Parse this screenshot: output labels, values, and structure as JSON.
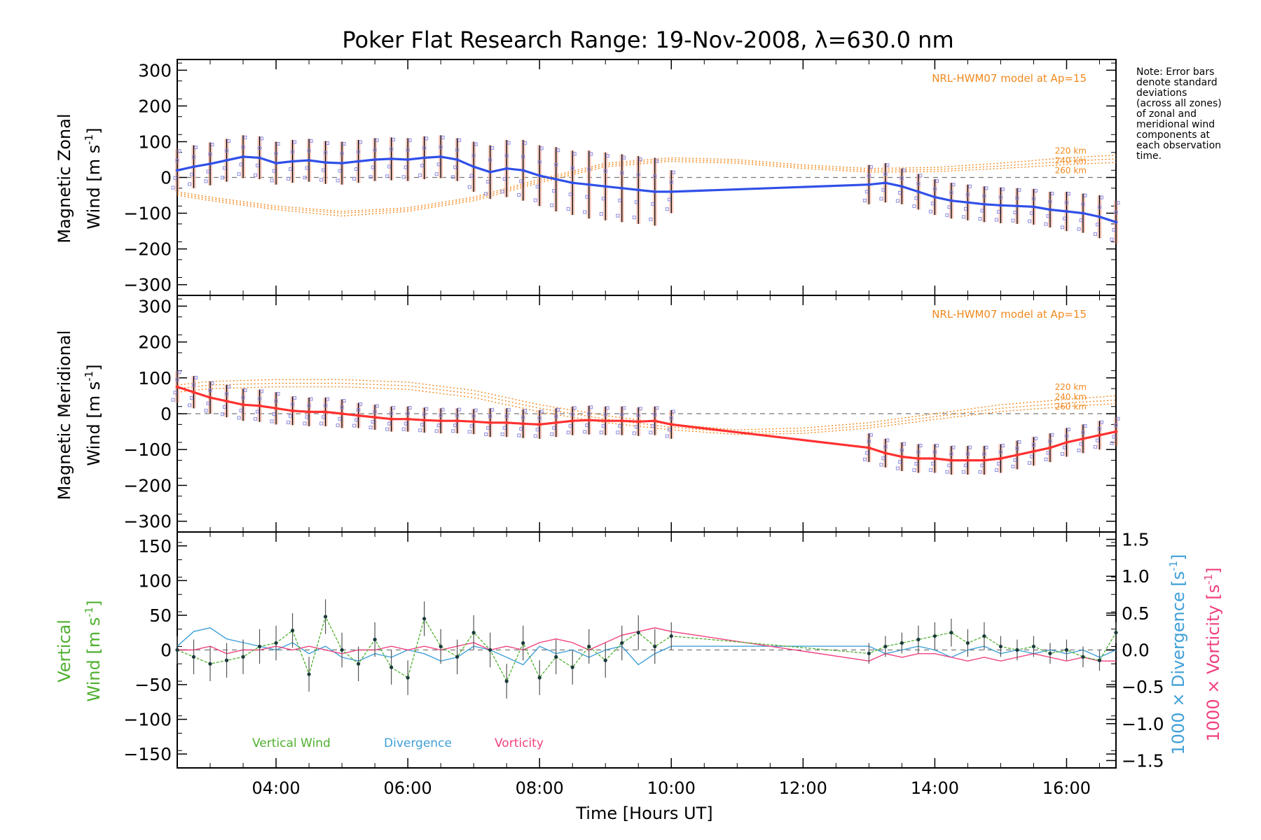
{
  "title": "Poker Flat Research Range: 19-Nov-2008, λ=630.0 nm",
  "note": [
    "Note: Error bars",
    "denote standard",
    "deviations",
    "(across all zones)",
    "of zonal and",
    "meridional wind",
    "components at",
    "each observation",
    "time."
  ],
  "xlabel": "Time [Hours UT]",
  "x_ticks": [
    "04:00",
    "06:00",
    "08:00",
    "10:00",
    "12:00",
    "14:00",
    "16:00"
  ],
  "colors": {
    "zonal": "#3050e8",
    "meridional": "#ff3030",
    "model": "#f08a20",
    "vertical": "#50b030",
    "divergence": "#40a0d8",
    "vorticity": "#f04080",
    "zones": "#8c8ce0",
    "errorbar": "#000000"
  },
  "chart_data": [
    {
      "type": "line",
      "panel": "zonal",
      "ylabel_line1": "Magnetic Zonal",
      "ylabel_line2": "Wind [m s",
      "ylabel_sup": "-1",
      "ylabel_close": "]",
      "xlim": [
        2.5,
        16.75
      ],
      "ylim": [
        -330,
        330
      ],
      "y_ticks": [
        "300",
        "200",
        "100",
        "0",
        "−100",
        "−200",
        "−300"
      ],
      "model_label": "NRL-HWM07 model at Ap=15",
      "model_altitudes": [
        "220 km",
        "240 km",
        "260 km"
      ],
      "series": [
        {
          "x": [
            2.5,
            2.75,
            3.0,
            3.25,
            3.5,
            3.75,
            4.0,
            4.25,
            4.5,
            4.75,
            5.0,
            5.25,
            5.5,
            5.75,
            6.0,
            6.25,
            6.5,
            6.75,
            7.0,
            7.25,
            7.5,
            7.75,
            8.0,
            8.25,
            8.5,
            8.75,
            9.0,
            9.25,
            9.5,
            9.75,
            10.0,
            13.0,
            13.25,
            13.5,
            13.75,
            14.0,
            14.25,
            14.5,
            14.75,
            15.0,
            15.25,
            15.5,
            15.75,
            16.0,
            16.25,
            16.5,
            16.75
          ],
          "y": [
            20,
            30,
            38,
            48,
            58,
            55,
            40,
            45,
            48,
            42,
            40,
            45,
            50,
            52,
            50,
            55,
            58,
            50,
            30,
            15,
            25,
            20,
            5,
            -5,
            -15,
            -20,
            -25,
            -30,
            -35,
            -40,
            -40,
            -20,
            -15,
            -25,
            -40,
            -55,
            -65,
            -70,
            -75,
            -78,
            -80,
            -82,
            -90,
            -95,
            -100,
            -110,
            -125
          ]
        }
      ],
      "model": [
        {
          "x": [
            2.5,
            3.0,
            4.0,
            5.0,
            6.0,
            7.0,
            8.0,
            9.0,
            10.0,
            11.0,
            12.0,
            13.0,
            14.0,
            15.0,
            16.0,
            16.75
          ],
          "y": [
            -40,
            -55,
            -80,
            -95,
            -85,
            -55,
            -5,
            40,
            55,
            50,
            35,
            25,
            28,
            40,
            55,
            62
          ]
        },
        {
          "x": [
            2.5,
            3.0,
            4.0,
            5.0,
            6.0,
            7.0,
            8.0,
            9.0,
            10.0,
            11.0,
            12.0,
            13.0,
            14.0,
            15.0,
            16.0,
            16.75
          ],
          "y": [
            -45,
            -60,
            -85,
            -100,
            -90,
            -60,
            -10,
            35,
            50,
            45,
            30,
            20,
            22,
            32,
            45,
            52
          ]
        },
        {
          "x": [
            2.5,
            3.0,
            4.0,
            5.0,
            6.0,
            7.0,
            8.0,
            9.0,
            10.0,
            11.0,
            12.0,
            13.0,
            14.0,
            15.0,
            16.0,
            16.75
          ],
          "y": [
            -50,
            -65,
            -90,
            -108,
            -95,
            -65,
            -15,
            30,
            45,
            40,
            25,
            15,
            16,
            25,
            36,
            42
          ]
        }
      ],
      "errors": [
        60,
        60,
        60,
        60,
        60,
        60,
        60,
        60,
        60,
        60,
        60,
        60,
        60,
        60,
        60,
        60,
        60,
        60,
        70,
        75,
        80,
        85,
        85,
        90,
        90,
        95,
        95,
        95,
        95,
        95,
        60,
        55,
        55,
        50,
        50,
        50,
        50,
        50,
        50,
        50,
        50,
        50,
        50,
        55,
        55,
        60,
        60
      ]
    },
    {
      "type": "line",
      "panel": "meridional",
      "ylabel_line1": "Magnetic Meridional",
      "ylabel_line2": "Wind [m s",
      "ylabel_sup": "-1",
      "ylabel_close": "]",
      "xlim": [
        2.5,
        16.75
      ],
      "ylim": [
        -330,
        330
      ],
      "y_ticks": [
        "300",
        "200",
        "100",
        "0",
        "−100",
        "−200",
        "−300"
      ],
      "model_label": "NRL-HWM07 model at Ap=15",
      "model_altitudes": [
        "220 km",
        "240 km",
        "260 km"
      ],
      "series": [
        {
          "x": [
            2.5,
            2.75,
            3.0,
            3.25,
            3.5,
            3.75,
            4.0,
            4.25,
            4.5,
            4.75,
            5.0,
            5.25,
            5.5,
            5.75,
            6.0,
            6.25,
            6.5,
            6.75,
            7.0,
            7.25,
            7.5,
            7.75,
            8.0,
            8.25,
            8.5,
            8.75,
            9.0,
            9.25,
            9.5,
            9.75,
            10.0,
            13.0,
            13.25,
            13.5,
            13.75,
            14.0,
            14.25,
            14.5,
            14.75,
            15.0,
            15.25,
            15.5,
            15.75,
            16.0,
            16.25,
            16.5,
            16.75
          ],
          "y": [
            75,
            60,
            45,
            35,
            25,
            22,
            15,
            8,
            5,
            5,
            0,
            -5,
            -10,
            -15,
            -15,
            -18,
            -20,
            -20,
            -22,
            -25,
            -25,
            -28,
            -30,
            -25,
            -20,
            -18,
            -20,
            -20,
            -22,
            -20,
            -30,
            -95,
            -110,
            -120,
            -125,
            -125,
            -130,
            -130,
            -130,
            -125,
            -115,
            -105,
            -95,
            -80,
            -70,
            -60,
            -50
          ]
        }
      ],
      "model": [
        {
          "x": [
            2.5,
            3.0,
            4.0,
            5.0,
            6.0,
            7.0,
            8.0,
            9.0,
            10.0,
            11.0,
            12.0,
            13.0,
            14.0,
            15.0,
            16.0,
            16.75
          ],
          "y": [
            80,
            90,
            95,
            95,
            88,
            65,
            25,
            -5,
            -30,
            -45,
            -40,
            -25,
            0,
            25,
            40,
            50
          ]
        },
        {
          "x": [
            2.5,
            3.0,
            4.0,
            5.0,
            6.0,
            7.0,
            8.0,
            9.0,
            10.0,
            11.0,
            12.0,
            13.0,
            14.0,
            15.0,
            16.0,
            16.75
          ],
          "y": [
            70,
            80,
            85,
            85,
            78,
            55,
            15,
            -15,
            -38,
            -52,
            -48,
            -33,
            -8,
            15,
            30,
            38
          ]
        },
        {
          "x": [
            2.5,
            3.0,
            4.0,
            5.0,
            6.0,
            7.0,
            8.0,
            9.0,
            10.0,
            11.0,
            12.0,
            13.0,
            14.0,
            15.0,
            16.0,
            16.75
          ],
          "y": [
            60,
            70,
            75,
            75,
            68,
            45,
            5,
            -25,
            -45,
            -58,
            -55,
            -40,
            -16,
            6,
            20,
            28
          ]
        }
      ],
      "errors": [
        45,
        45,
        45,
        45,
        45,
        45,
        45,
        40,
        40,
        40,
        40,
        35,
        35,
        35,
        35,
        35,
        35,
        35,
        35,
        40,
        40,
        40,
        40,
        40,
        40,
        40,
        40,
        40,
        40,
        40,
        40,
        40,
        40,
        40,
        40,
        40,
        40,
        40,
        40,
        40,
        40,
        40,
        40,
        40,
        40,
        40,
        40
      ]
    },
    {
      "type": "line",
      "panel": "vertical",
      "ylabel_line1": "Vertical",
      "ylabel_line2": "Wind [m s",
      "ylabel_sup": "-1",
      "ylabel_close": "]",
      "y2label_div": "1000 × Divergence [s",
      "y2label_vor": "1000 × Vorticity [s",
      "y2label_sup": "-1",
      "y2label_close": "]",
      "xlim": [
        2.5,
        16.75
      ],
      "ylim": [
        -170,
        170
      ],
      "y2lim": [
        -1.6,
        1.6
      ],
      "y_ticks": [
        "150",
        "100",
        "50",
        "0",
        "−50",
        "−100",
        "−150"
      ],
      "y2_ticks": [
        "1.5",
        "1.0",
        "0.5",
        "0.0",
        "−0.5",
        "−1.0",
        "−1.5"
      ],
      "legend": [
        "Vertical Wind",
        "Divergence",
        "Vorticity"
      ],
      "series": [
        {
          "name": "Vertical Wind",
          "x": [
            2.5,
            2.75,
            3.0,
            3.25,
            3.5,
            3.75,
            4.0,
            4.25,
            4.5,
            4.75,
            5.0,
            5.25,
            5.5,
            5.75,
            6.0,
            6.25,
            6.5,
            6.75,
            7.0,
            7.25,
            7.5,
            7.75,
            8.0,
            8.25,
            8.5,
            8.75,
            9.0,
            9.25,
            9.5,
            9.75,
            10.0,
            13.0,
            13.25,
            13.5,
            13.75,
            14.0,
            14.25,
            14.5,
            14.75,
            15.0,
            15.25,
            15.5,
            15.75,
            16.0,
            16.25,
            16.5,
            16.75
          ],
          "y": [
            0,
            -10,
            -20,
            -15,
            -10,
            5,
            10,
            28,
            -35,
            48,
            0,
            -20,
            15,
            -25,
            -40,
            45,
            5,
            -10,
            25,
            0,
            -45,
            10,
            -40,
            -10,
            -25,
            5,
            -15,
            10,
            25,
            5,
            20,
            -5,
            5,
            10,
            15,
            20,
            25,
            10,
            20,
            5,
            0,
            5,
            -5,
            0,
            -10,
            -15,
            25
          ]
        },
        {
          "name": "Divergence",
          "x": [
            2.5,
            2.75,
            3.0,
            3.25,
            3.5,
            3.75,
            4.0,
            4.25,
            4.5,
            4.75,
            5.0,
            5.25,
            5.5,
            5.75,
            6.0,
            6.25,
            6.5,
            6.75,
            7.0,
            7.25,
            7.5,
            7.75,
            8.0,
            8.25,
            8.5,
            8.75,
            9.0,
            9.25,
            9.5,
            9.75,
            10.0,
            13.0,
            13.25,
            13.5,
            13.75,
            14.0,
            14.25,
            14.5,
            14.75,
            15.0,
            15.25,
            15.5,
            15.75,
            16.0,
            16.25,
            16.5,
            16.75
          ],
          "y": [
            0.05,
            0.25,
            0.3,
            0.15,
            0.1,
            0.05,
            0.0,
            0.1,
            -0.05,
            0.05,
            -0.1,
            -0.15,
            -0.05,
            -0.1,
            0.0,
            -0.05,
            -0.15,
            -0.1,
            0.05,
            0.0,
            -0.1,
            -0.2,
            0.05,
            -0.05,
            0.0,
            -0.1,
            0.0,
            0.05,
            -0.2,
            -0.05,
            0.05,
            0.05,
            -0.05,
            0.0,
            0.05,
            0.0,
            -0.1,
            0.0,
            0.05,
            -0.05,
            0.0,
            -0.05,
            0.0,
            -0.05,
            0.0,
            -0.1,
            0.0
          ]
        },
        {
          "name": "Vorticity",
          "x": [
            2.5,
            2.75,
            3.0,
            3.25,
            3.5,
            3.75,
            4.0,
            4.25,
            4.5,
            4.75,
            5.0,
            5.25,
            5.5,
            5.75,
            6.0,
            6.25,
            6.5,
            6.75,
            7.0,
            7.25,
            7.5,
            7.75,
            8.0,
            8.25,
            8.5,
            8.75,
            9.0,
            9.25,
            9.5,
            9.75,
            10.0,
            13.0,
            13.25,
            13.5,
            13.75,
            14.0,
            14.25,
            14.5,
            14.75,
            15.0,
            15.25,
            15.5,
            15.75,
            16.0,
            16.25,
            16.5,
            16.75
          ],
          "y": [
            0.0,
            0.0,
            0.05,
            -0.05,
            0.0,
            0.0,
            0.05,
            0.0,
            0.05,
            0.0,
            -0.05,
            0.0,
            0.0,
            0.05,
            0.0,
            0.05,
            0.0,
            0.05,
            0.1,
            0.0,
            0.05,
            0.0,
            0.1,
            0.15,
            0.1,
            0.0,
            0.1,
            0.2,
            0.25,
            0.3,
            0.25,
            -0.15,
            -0.05,
            -0.1,
            -0.05,
            -0.05,
            -0.1,
            -0.15,
            -0.1,
            -0.15,
            -0.1,
            -0.05,
            -0.1,
            -0.15,
            -0.1,
            -0.15,
            -0.15
          ]
        }
      ],
      "errors": [
        20,
        25,
        25,
        25,
        25,
        25,
        25,
        25,
        25,
        25,
        25,
        25,
        25,
        25,
        25,
        25,
        25,
        25,
        25,
        25,
        25,
        25,
        25,
        25,
        25,
        25,
        25,
        25,
        25,
        25,
        20,
        15,
        15,
        15,
        20,
        20,
        20,
        20,
        20,
        15,
        15,
        15,
        15,
        15,
        15,
        15,
        15
      ]
    }
  ]
}
